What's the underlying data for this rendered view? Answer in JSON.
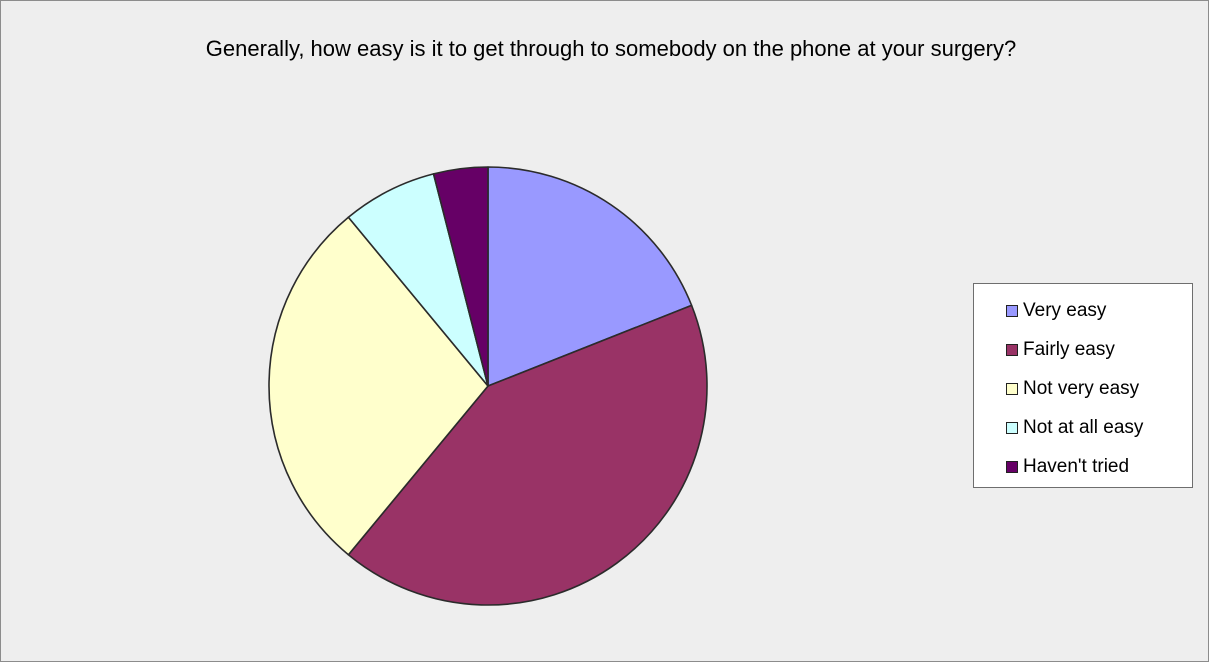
{
  "chart_data": {
    "type": "pie",
    "title": "Generally, how easy is it to get through to somebody on the phone at your surgery?",
    "categories": [
      "Very easy",
      "Fairly easy",
      "Not very easy",
      "Not at all easy",
      "Haven't tried"
    ],
    "values": [
      19,
      42,
      28,
      7,
      4
    ],
    "unit": "%",
    "colors": [
      "#9999ff",
      "#993366",
      "#ffffcc",
      "#ccffff",
      "#660066"
    ],
    "legend_position": "right",
    "start_angle": "12 o'clock",
    "direction": "clockwise"
  }
}
